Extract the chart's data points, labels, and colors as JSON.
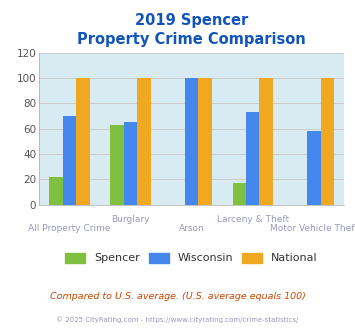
{
  "title_line1": "2019 Spencer",
  "title_line2": "Property Crime Comparison",
  "x_labels_top": [
    "",
    "Burglary",
    "",
    "Larceny & Theft",
    ""
  ],
  "x_labels_bot": [
    "All Property Crime",
    "",
    "Arson",
    "",
    "Motor Vehicle Theft"
  ],
  "series": {
    "Spencer": [
      22,
      63,
      0,
      17,
      0
    ],
    "Wisconsin": [
      70,
      65,
      100,
      73,
      58
    ],
    "National": [
      100,
      100,
      100,
      100,
      100
    ]
  },
  "colors": {
    "Spencer": "#80c040",
    "Wisconsin": "#4488ee",
    "National": "#f0a820"
  },
  "ylim": [
    0,
    120
  ],
  "yticks": [
    0,
    20,
    40,
    60,
    80,
    100,
    120
  ],
  "grid_color": "#cccccc",
  "bg_color": "#d8eaf2",
  "title_color": "#1155bb",
  "xlabel_color": "#9999bb",
  "footer_text": "Compared to U.S. average. (U.S. average equals 100)",
  "footer_color": "#cc4400",
  "copyright_text": "© 2025 CityRating.com - https://www.cityrating.com/crime-statistics/",
  "copyright_color": "#9999bb",
  "bar_width": 0.22,
  "legend_names": [
    "Spencer",
    "Wisconsin",
    "National"
  ]
}
